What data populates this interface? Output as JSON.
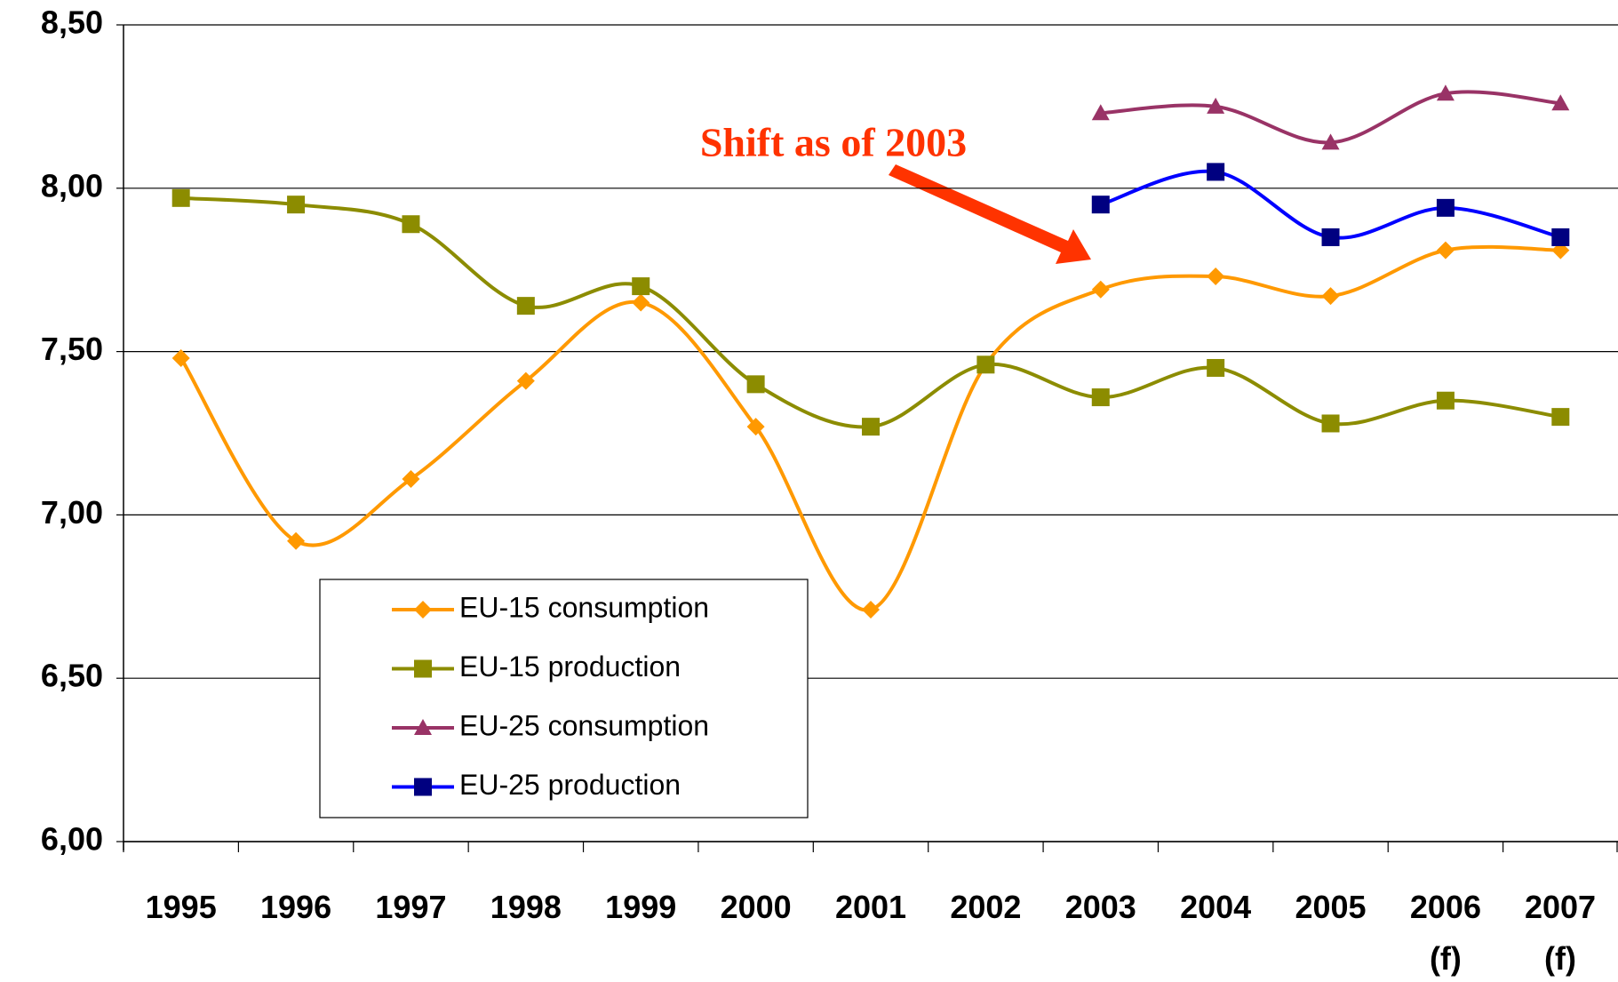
{
  "chart_data": {
    "type": "line",
    "categories": [
      "1995",
      "1996",
      "1997",
      "1998",
      "1999",
      "2000",
      "2001",
      "2002",
      "2003",
      "2004",
      "2005",
      "2006\n(f)",
      "2007\n(f)"
    ],
    "series": [
      {
        "name": "EU-15 consumption",
        "color": "#ff9900",
        "marker_color": "#ff9900",
        "marker": "diamond",
        "values": [
          7.48,
          6.92,
          7.11,
          7.41,
          7.65,
          7.27,
          6.71,
          7.46,
          7.69,
          7.73,
          7.67,
          7.81,
          7.81
        ]
      },
      {
        "name": "EU-15 production",
        "color": "#8c8c00",
        "marker_color": "#8c8c00",
        "marker": "square",
        "values": [
          7.97,
          7.95,
          7.89,
          7.64,
          7.7,
          7.4,
          7.27,
          7.46,
          7.36,
          7.45,
          7.28,
          7.35,
          7.3
        ]
      },
      {
        "name": "EU-25 consumption",
        "color": "#993366",
        "marker_color": "#993366",
        "marker": "triangle",
        "values": [
          null,
          null,
          null,
          null,
          null,
          null,
          null,
          null,
          8.23,
          8.25,
          8.14,
          8.29,
          8.26
        ]
      },
      {
        "name": "EU-25 production",
        "color": "#0000ff",
        "marker_color": "#000080",
        "marker": "square",
        "values": [
          null,
          null,
          null,
          null,
          null,
          null,
          null,
          null,
          7.95,
          8.05,
          7.85,
          7.94,
          7.85
        ]
      }
    ],
    "ylim": [
      6.0,
      8.5
    ],
    "yticks": [
      {
        "value": 6.0,
        "label": "6,00"
      },
      {
        "value": 6.5,
        "label": "6,50"
      },
      {
        "value": 7.0,
        "label": "7,00"
      },
      {
        "value": 7.5,
        "label": "7,50"
      },
      {
        "value": 8.0,
        "label": "8,00"
      },
      {
        "value": 8.5,
        "label": "8,50"
      }
    ],
    "grid": true,
    "smooth": true,
    "annotation": "Shift as of 2003"
  }
}
